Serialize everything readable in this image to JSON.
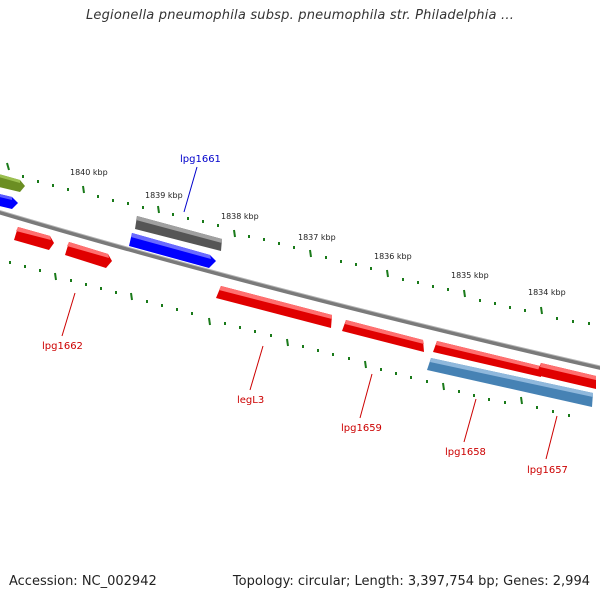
{
  "title": "Legionella pneumophila subsp. pneumophila str. Philadelphia ...",
  "footer": {
    "accession": "Accession: NC_002942",
    "topology": "Topology: circular; Length: 3,397,754 bp; Genes: 2,994"
  },
  "colors": {
    "forward_gene": "#ff0000",
    "reverse_gene": "#0000ff",
    "pseudo_gene": "#666666",
    "blue_gene": "#4682b4",
    "olive_gene": "#6b8e23",
    "tick": "#1a7a1a",
    "backbone": "#808080",
    "label_red": "#cc0000",
    "label_blue": "#0000cc"
  },
  "scale_labels": [
    "1840 kbp",
    "1839 kbp",
    "1838 kbp",
    "1837 kbp",
    "1836 kbp",
    "1835 kbp",
    "1834 kbp"
  ],
  "gene_labels": [
    "lpg1661",
    "lpg1662",
    "legL3",
    "lpg1659",
    "lpg1658",
    "lpg1657"
  ]
}
